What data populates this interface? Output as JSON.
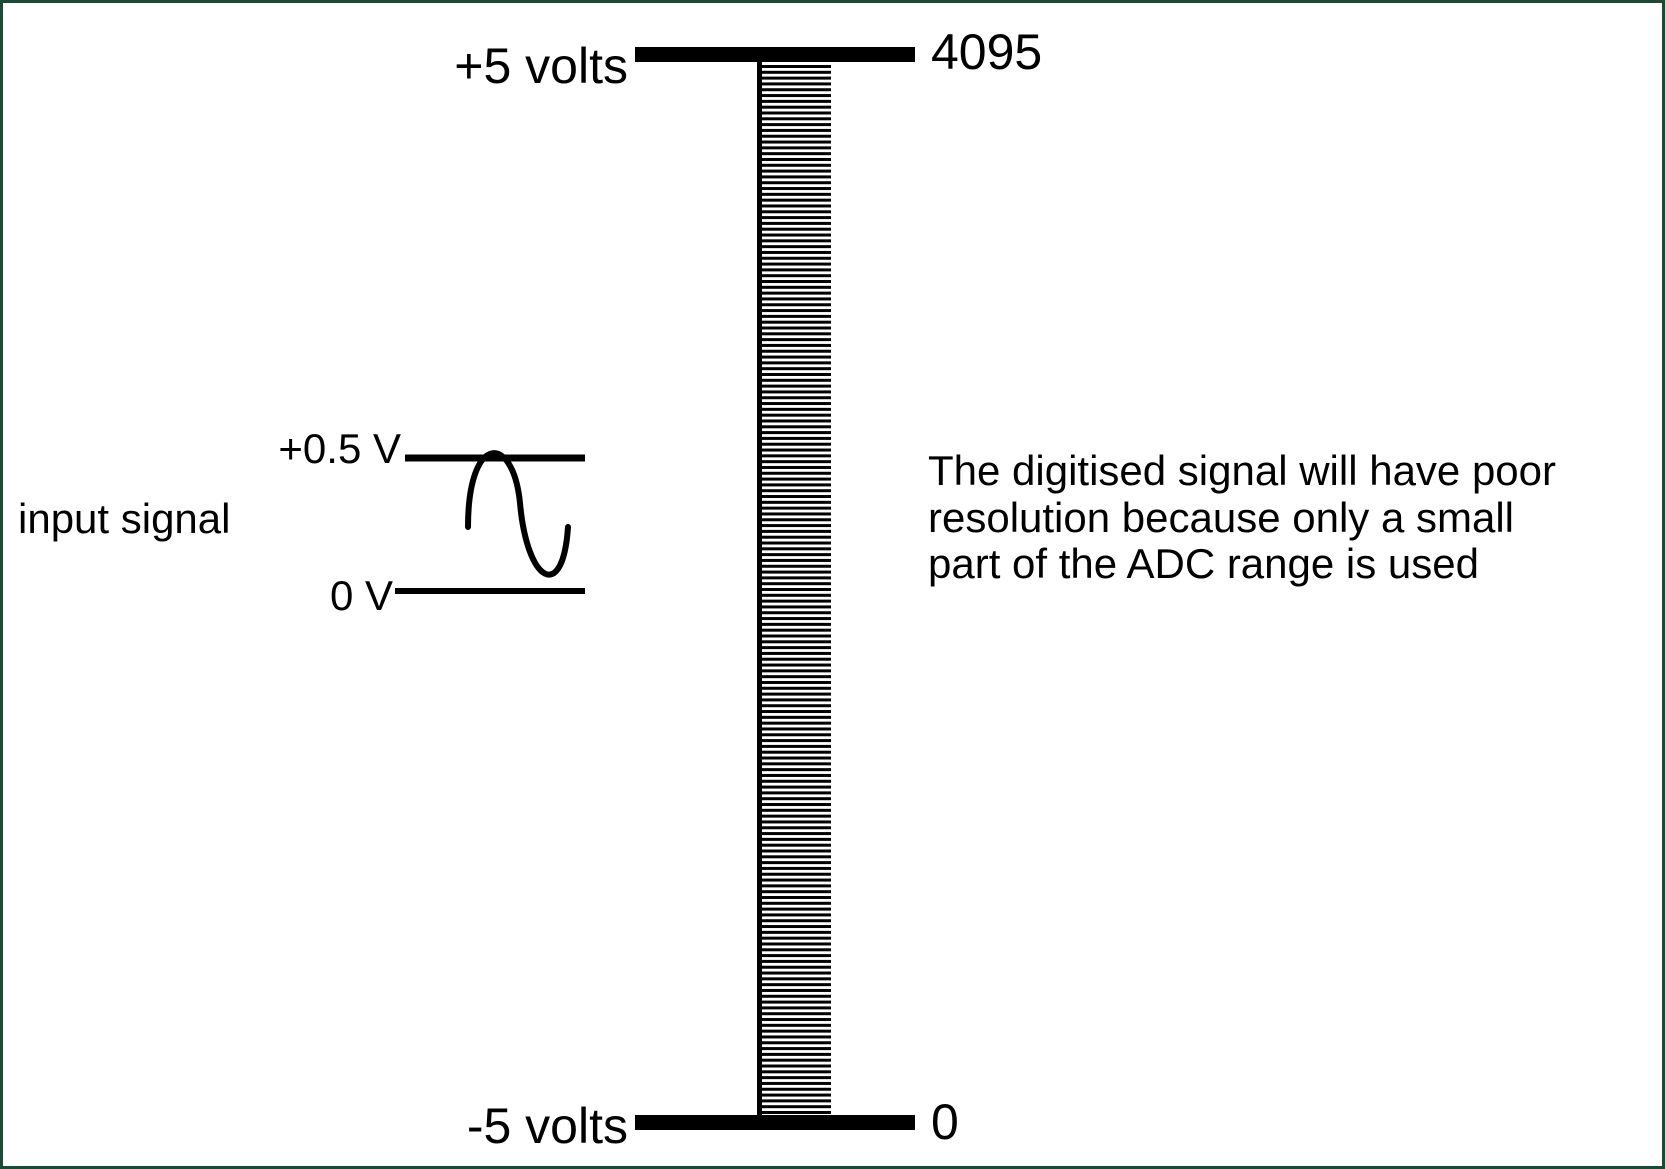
{
  "scale": {
    "top_voltage_label": "+5 volts",
    "bottom_voltage_label": "-5 volts",
    "top_code_label": "4095",
    "bottom_code_label": "0",
    "ladder_steps": 180
  },
  "input": {
    "label": "input signal",
    "upper_level_label": "+0.5 V",
    "lower_level_label": "0 V"
  },
  "annotation": {
    "lines": [
      "The digitised signal will have poor",
      "resolution because only a small",
      "part of the ADC range is used"
    ]
  },
  "colors": {
    "frame": "#1b4a35",
    "ink": "#000000",
    "background": "#ffffff"
  }
}
